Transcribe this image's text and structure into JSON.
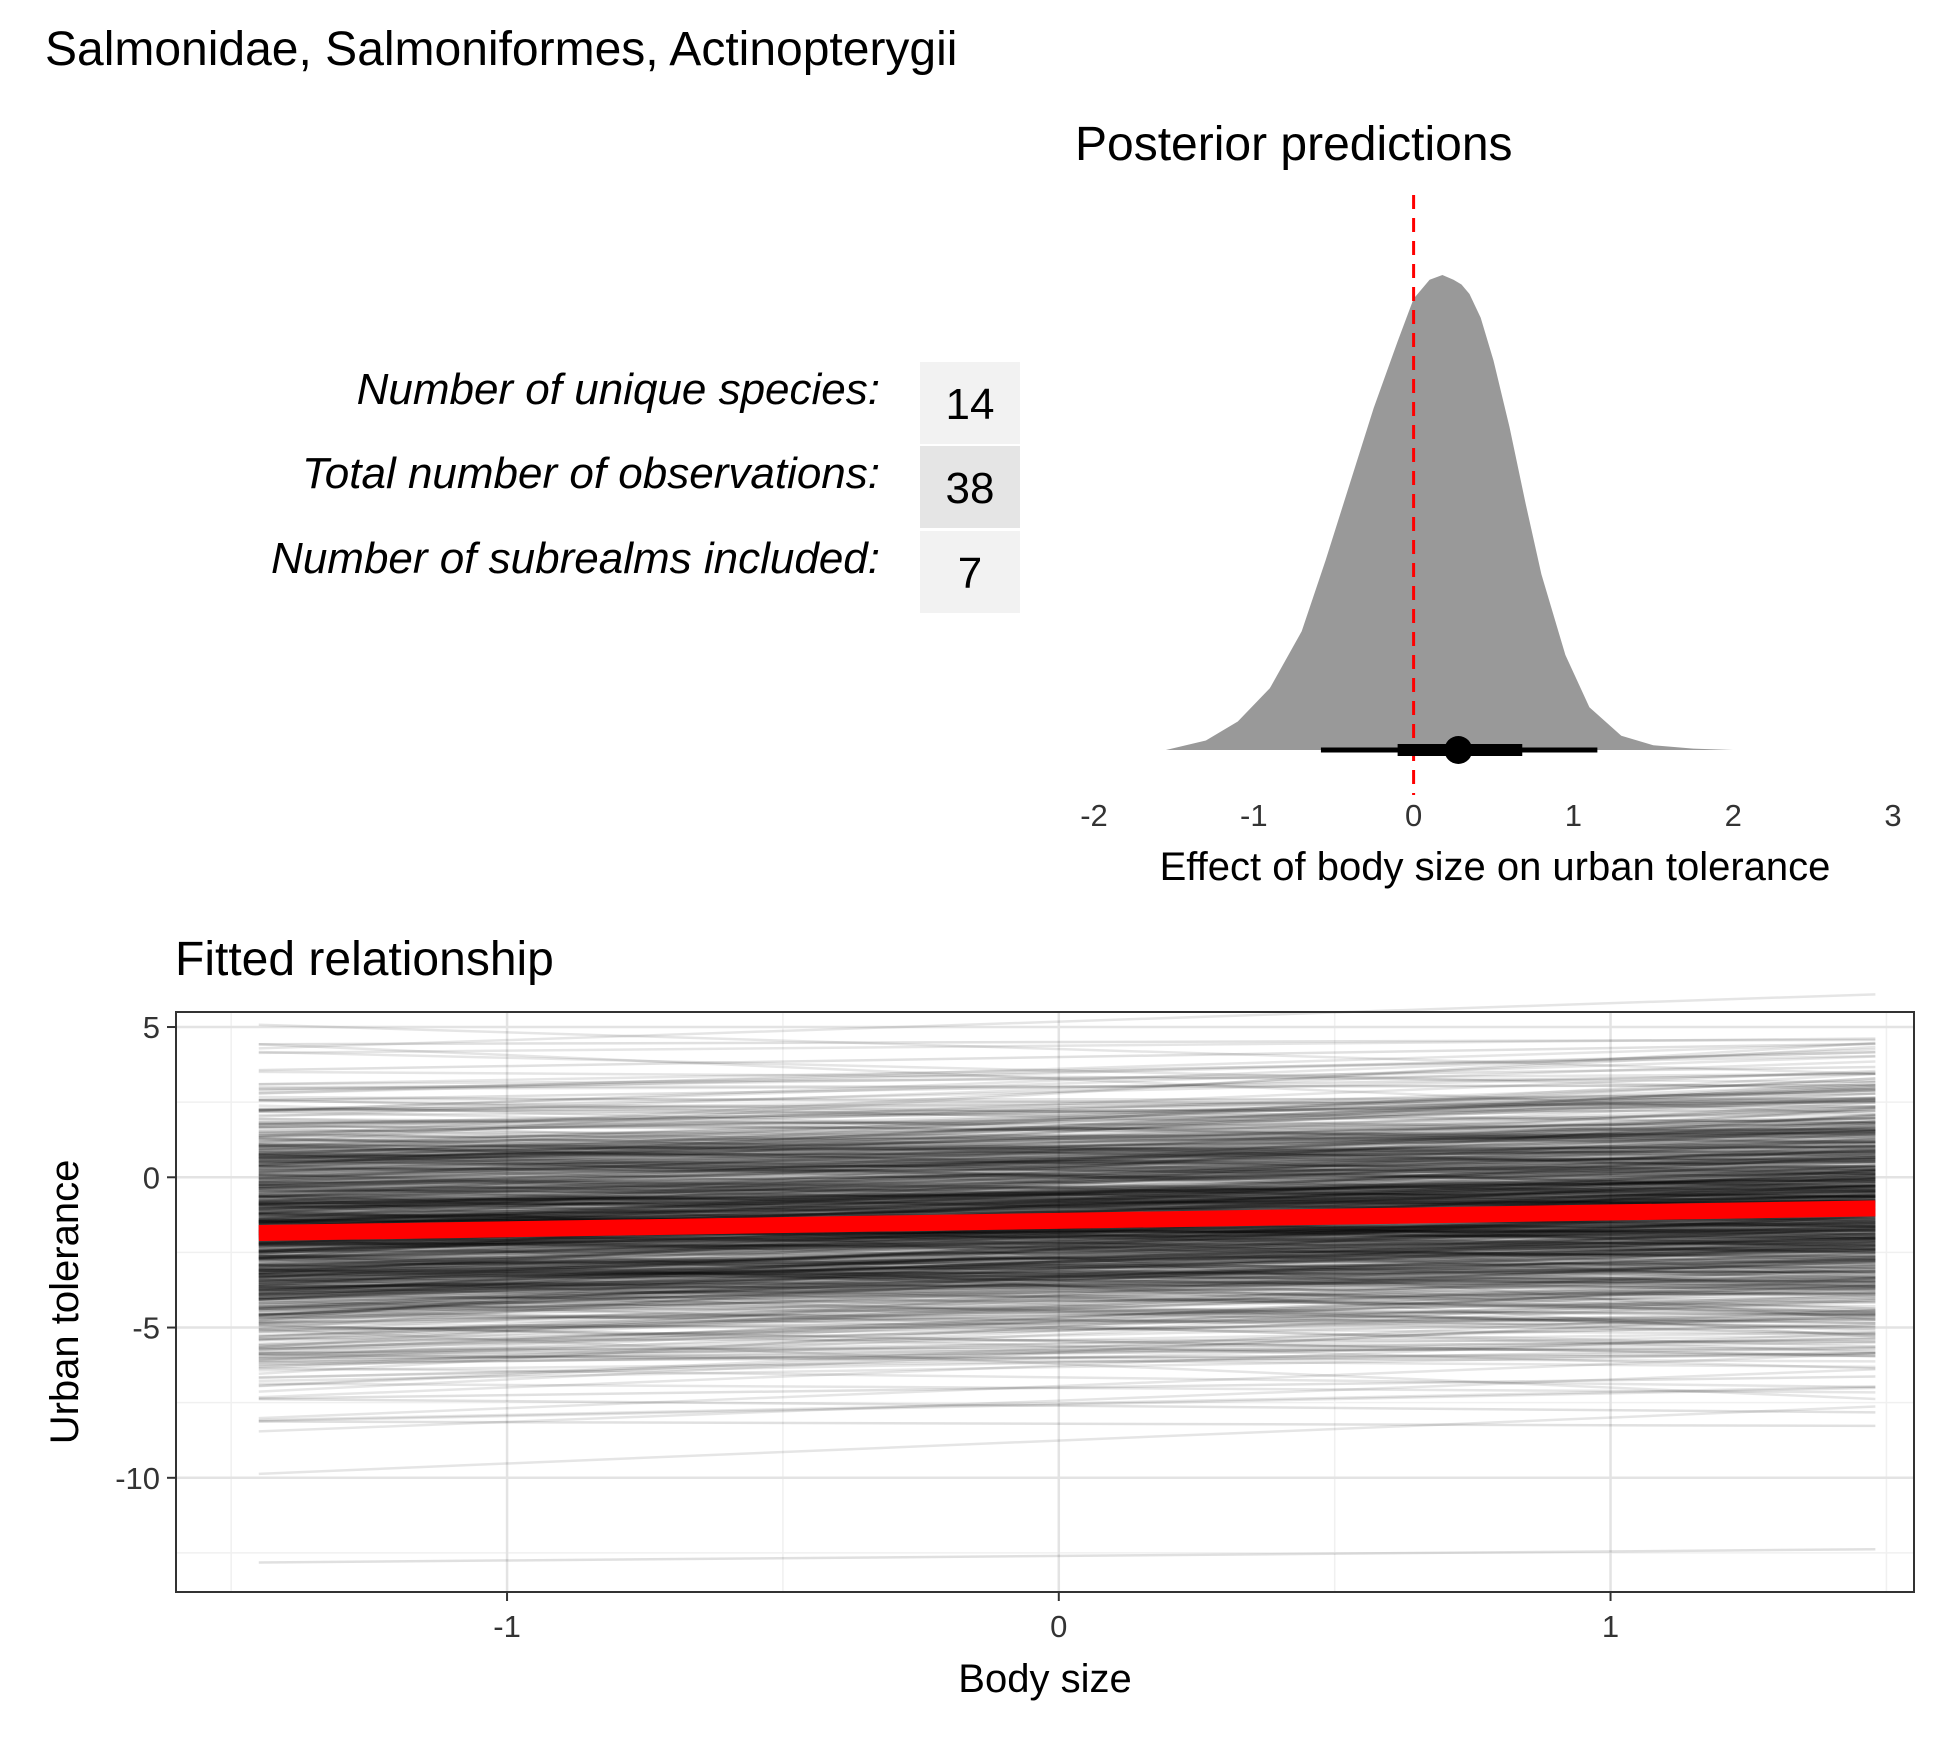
{
  "title": "Salmonidae, Salmoniformes, Actinopterygii",
  "stats": [
    {
      "label": "Number of unique species:",
      "value": "14",
      "fill": "#f2f2f2"
    },
    {
      "label": "Total number of observations:",
      "value": "38",
      "fill": "#e5e5e5"
    },
    {
      "label": "Number of subrealms included:",
      "value": "7",
      "fill": "#f2f2f2"
    }
  ],
  "chart_data": [
    {
      "type": "area",
      "title": "Posterior predictions",
      "xlabel": "Effect of body size on urban tolerance",
      "ylabel": "",
      "xlim": [
        -2,
        3
      ],
      "x_ticks": [
        -2,
        -1,
        0,
        1,
        2,
        3
      ],
      "x_tick_labels": [
        "-2",
        "-1",
        "0",
        "1",
        "2",
        "3"
      ],
      "density": {
        "x": [
          -1.55,
          -1.3,
          -1.1,
          -0.9,
          -0.7,
          -0.55,
          -0.4,
          -0.25,
          -0.1,
          0.0,
          0.1,
          0.18,
          0.25,
          0.3,
          0.35,
          0.42,
          0.5,
          0.6,
          0.7,
          0.8,
          0.95,
          1.1,
          1.3,
          1.5,
          1.75,
          2.0
        ],
        "y": [
          0.0,
          0.02,
          0.06,
          0.13,
          0.25,
          0.4,
          0.56,
          0.72,
          0.86,
          0.95,
          0.99,
          1.0,
          0.99,
          0.98,
          0.96,
          0.91,
          0.82,
          0.68,
          0.52,
          0.37,
          0.2,
          0.09,
          0.03,
          0.01,
          0.003,
          0.0
        ]
      },
      "point_estimate": 0.28,
      "interval_inner": [
        -0.1,
        0.68
      ],
      "interval_outer": [
        -0.58,
        1.15
      ],
      "reference_line": 0,
      "colors": {
        "density": "#999999",
        "interval": "#000000",
        "reference": "#ff0000"
      }
    },
    {
      "type": "line",
      "title": "Fitted relationship",
      "xlabel": "Body size",
      "ylabel": "Urban tolerance",
      "xlim": [
        -1.6,
        1.55
      ],
      "ylim": [
        -13.8,
        5.5
      ],
      "x_ticks": [
        -1,
        0,
        1
      ],
      "x_tick_labels": [
        "-1",
        "0",
        "1"
      ],
      "y_ticks": [
        5,
        0,
        -5,
        -10
      ],
      "y_tick_labels": [
        "5",
        "0",
        "-5",
        "-10"
      ],
      "x_range": [
        -1.45,
        1.48
      ],
      "mean_line": {
        "intercept": -1.45,
        "slope": 0.28,
        "color": "#ff0000"
      },
      "draws": {
        "count": 900,
        "intercept_mean": -1.45,
        "intercept_sd": 2.1,
        "slope_mean": 0.28,
        "slope_sd": 0.42,
        "color": "#000000"
      },
      "outlier_draws": [
        {
          "intercept": 4.5,
          "slope": 0.05
        },
        {
          "intercept": 4.0,
          "slope": 0.3
        },
        {
          "intercept": 3.3,
          "slope": 0.25
        },
        {
          "intercept": 3.0,
          "slope": 0.3
        },
        {
          "intercept": -6.0,
          "slope": 0.1
        },
        {
          "intercept": -7.0,
          "slope": 0.25
        },
        {
          "intercept": -7.6,
          "slope": -0.15
        },
        {
          "intercept": -8.2,
          "slope": -0.05
        },
        {
          "intercept": -12.6,
          "slope": 0.15
        }
      ]
    }
  ]
}
